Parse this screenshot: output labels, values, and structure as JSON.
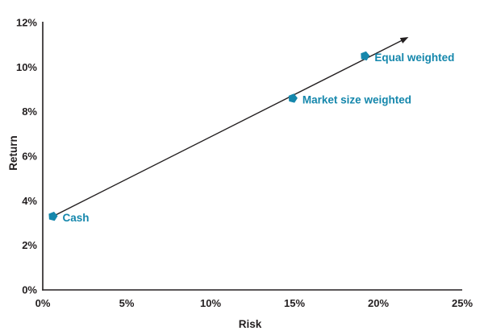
{
  "colors": {
    "accent": "#1587AC",
    "axis": "#231F20",
    "text": "#231F20",
    "trend_line": "#231F20",
    "background": "#FFFFFF"
  },
  "chart_data": {
    "type": "scatter",
    "title": "",
    "xlabel": "Risk",
    "ylabel": "Return",
    "xlim": [
      0,
      25
    ],
    "ylim": [
      0,
      12
    ],
    "grid": false,
    "legend": "none",
    "x_ticks": {
      "values": [
        0,
        5,
        10,
        15,
        20,
        25
      ],
      "labels": [
        "0%",
        "5%",
        "10%",
        "15%",
        "20%",
        "25%"
      ]
    },
    "y_ticks": {
      "values": [
        0,
        2,
        4,
        6,
        8,
        10,
        12
      ],
      "labels": [
        "0%",
        "2%",
        "4%",
        "6%",
        "8%",
        "10%",
        "12%"
      ]
    },
    "points": [
      {
        "name": "Cash",
        "x": 0.6,
        "y": 3.3
      },
      {
        "name": "Market size weighted",
        "x": 14.9,
        "y": 8.6
      },
      {
        "name": "Equal weighted",
        "x": 19.2,
        "y": 10.5
      }
    ],
    "trend_arrow": {
      "from": {
        "x": 0.6,
        "y": 3.3
      },
      "to": {
        "x": 21.8,
        "y": 11.35
      }
    }
  }
}
